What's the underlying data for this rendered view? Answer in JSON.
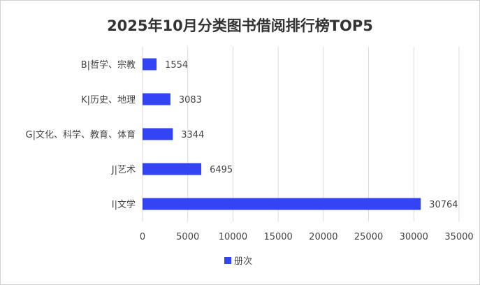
{
  "chart_data": {
    "type": "bar",
    "orientation": "horizontal",
    "title": "2025年10月分类图书借阅排行榜TOP5",
    "categories": [
      "B|哲学、宗教",
      "K|历史、地理",
      "G|文化、科学、教育、体育",
      "J|艺术",
      "I|文学"
    ],
    "series": [
      {
        "name": "册次",
        "values": [
          1554,
          3083,
          3344,
          6495,
          30764
        ],
        "color": "#3344f4"
      }
    ],
    "xlim": [
      0,
      35000
    ],
    "xticks": [
      0,
      5000,
      10000,
      15000,
      20000,
      25000,
      30000,
      35000
    ],
    "grid": true,
    "data_labels": true,
    "legend": "bottom"
  }
}
